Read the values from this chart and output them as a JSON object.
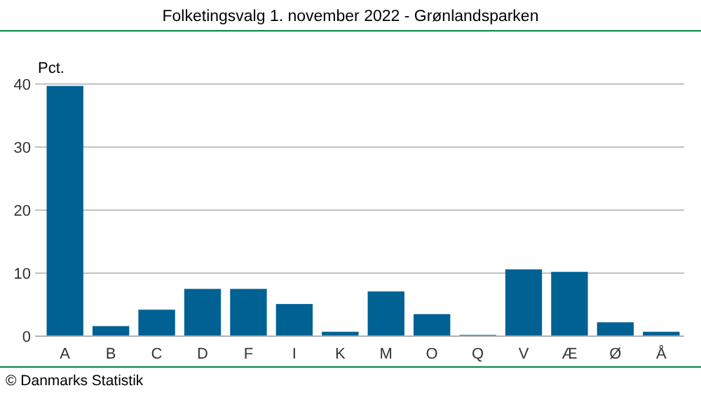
{
  "chart_data": {
    "type": "bar",
    "title": "Folketingsvalg 1. november 2022 - Grønlandsparken",
    "ylabel": "Pct.",
    "categories": [
      "A",
      "B",
      "C",
      "D",
      "F",
      "I",
      "K",
      "M",
      "O",
      "Q",
      "V",
      "Æ",
      "Ø",
      "Å"
    ],
    "values": [
      39.7,
      1.6,
      4.2,
      7.5,
      7.5,
      5.1,
      0.7,
      7.1,
      3.5,
      0.2,
      10.6,
      10.2,
      2.2,
      0.7
    ],
    "color": "#006193",
    "ylim": [
      0,
      40
    ],
    "yticks": [
      0,
      10,
      20,
      30,
      40
    ],
    "grid": "y",
    "annotations": [
      "© Danmarks Statistik"
    ]
  }
}
